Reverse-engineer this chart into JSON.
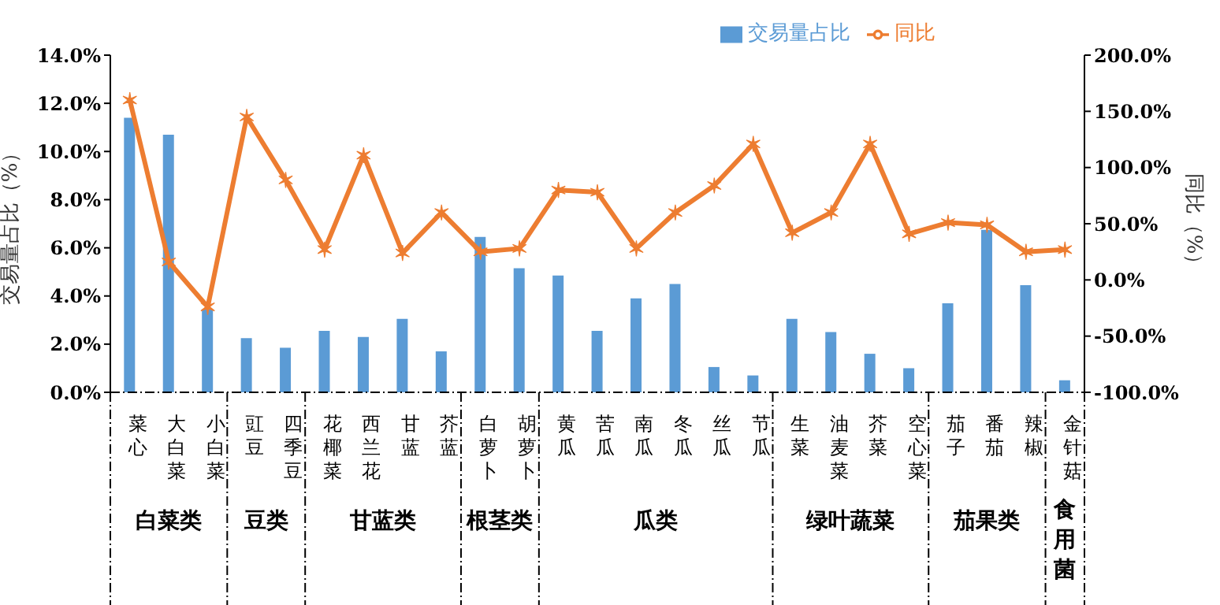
{
  "chart_data": {
    "type": "bar",
    "ylabel": "交易量占比（%）",
    "y2label": "同比（%）",
    "categories": [
      "菜心",
      "大白菜",
      "小白菜",
      "豇豆",
      "四季豆",
      "花椰菜",
      "西兰花",
      "甘蓝",
      "芥蓝",
      "白萝卜",
      "胡萝卜",
      "黄瓜",
      "苦瓜",
      "南瓜",
      "冬瓜",
      "丝瓜",
      "节瓜",
      "生菜",
      "油麦菜",
      "芥菜",
      "空心菜",
      "茄子",
      "番茄",
      "辣椒",
      "金针菇"
    ],
    "series": [
      {
        "name": "交易量占比",
        "color": "#5b9bd5",
        "values": [
          11.4,
          10.7,
          3.45,
          2.25,
          1.85,
          2.55,
          2.3,
          3.05,
          1.7,
          6.45,
          5.15,
          4.85,
          2.55,
          3.9,
          4.5,
          1.05,
          0.7,
          3.05,
          2.5,
          1.6,
          1.0,
          3.7,
          6.75,
          4.45,
          0.5
        ]
      },
      {
        "name": "同比",
        "type": "line",
        "axis": "y2",
        "color": "#ed7d31",
        "marker": "cross",
        "values": [
          160,
          16,
          -24,
          145,
          89,
          27,
          111,
          24,
          60,
          25,
          28,
          80,
          78,
          28,
          60,
          84,
          121,
          42,
          60,
          121,
          41,
          51,
          49,
          25,
          27
        ]
      }
    ],
    "ylim": [
      0,
      14
    ],
    "yticks": [
      {
        "value": 0,
        "label": "0.0%"
      },
      {
        "value": 2,
        "label": "2.0%"
      },
      {
        "value": 4,
        "label": "4.0%"
      },
      {
        "value": 6,
        "label": "6.0%"
      },
      {
        "value": 8,
        "label": "8.0%"
      },
      {
        "value": 10,
        "label": "10.0%"
      },
      {
        "value": 12,
        "label": "12.0%"
      },
      {
        "value": 14,
        "label": "14.0%"
      }
    ],
    "y2lim": [
      -100,
      200
    ],
    "y2ticks": [
      {
        "value": -100,
        "label": "-100.0%"
      },
      {
        "value": -50,
        "label": "-50.0%"
      },
      {
        "value": 0,
        "label": "0.0%"
      },
      {
        "value": 50,
        "label": "50.0%"
      },
      {
        "value": 100,
        "label": "100.0%"
      },
      {
        "value": 150,
        "label": "150.0%"
      },
      {
        "value": 200,
        "label": "200.0%"
      }
    ],
    "annotations": [
      "白菜类",
      "豆类",
      "甘蓝类",
      "根茎类",
      "瓜类",
      "绿叶蔬菜",
      "茄果类",
      "食用菌"
    ],
    "legend": "top",
    "grid": false,
    "line_style": "solid"
  }
}
